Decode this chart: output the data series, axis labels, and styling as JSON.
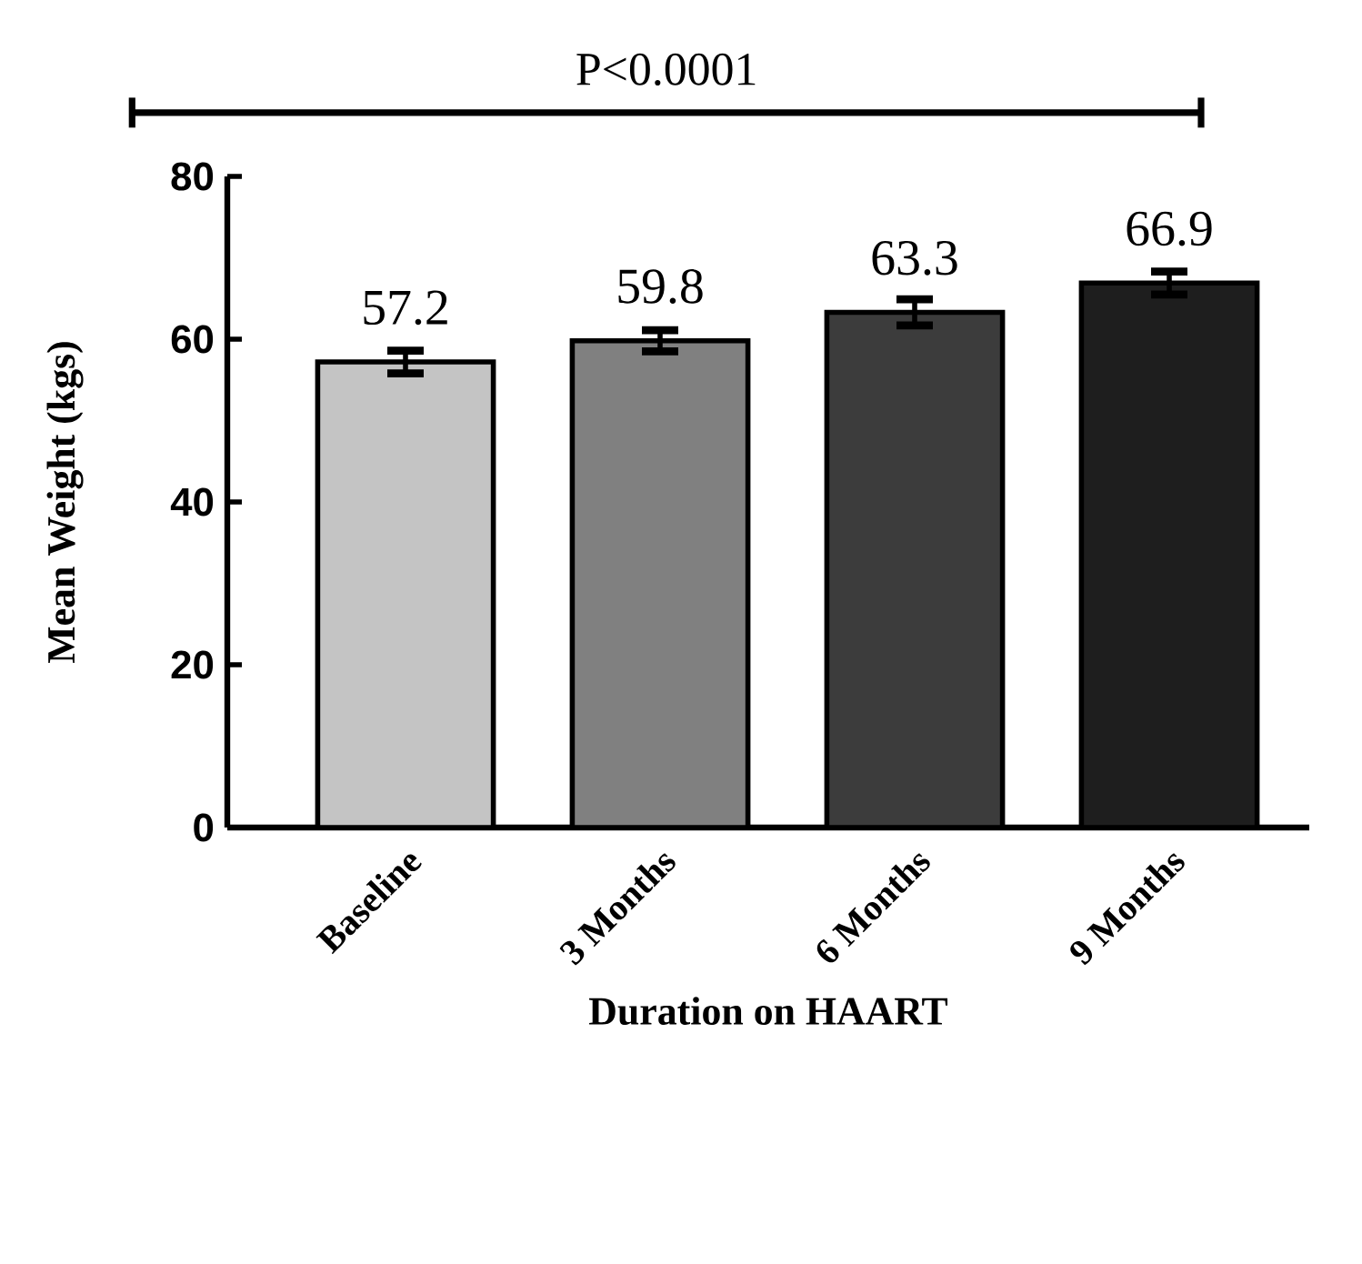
{
  "chart_data": {
    "type": "bar",
    "xlabel": "Duration on HAART",
    "ylabel": "Mean Weight (kgs)",
    "categories": [
      "Baseline",
      "3 Months",
      "6 Months",
      "9 Months"
    ],
    "values": [
      57.2,
      59.8,
      63.3,
      66.9
    ],
    "errors": [
      1.4,
      1.3,
      1.6,
      1.4
    ],
    "colors": [
      "#c4c4c4",
      "#808080",
      "#3c3c3c",
      "#1e1e1e"
    ],
    "data_labels": true,
    "ylim": [
      0,
      80
    ],
    "yticks": [
      0,
      20,
      40,
      60,
      80
    ],
    "annotations": [
      "P<0.0001"
    ]
  }
}
